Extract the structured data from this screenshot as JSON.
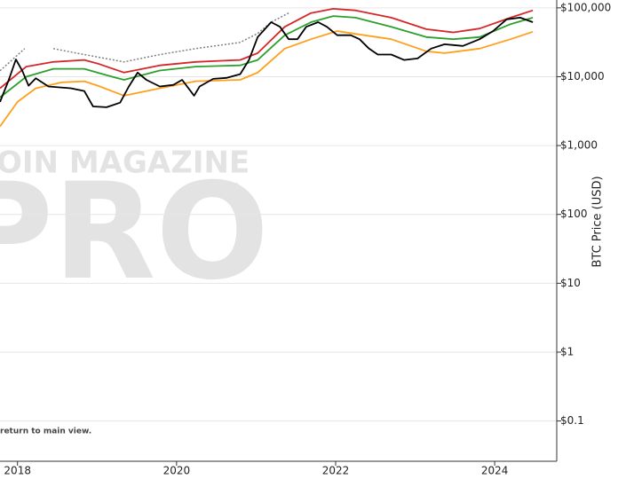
{
  "chart_data": {
    "type": "line",
    "y_axis_label": "BTC Price (USD)",
    "watermark": [
      "OIN MAGAZINE",
      "PRO",
      "®"
    ],
    "note": "return to main view.",
    "xlim": [
      2017.78,
      2024.78
    ],
    "xticks": [
      2018,
      2020,
      2022,
      2024
    ],
    "ylim": [
      0.026,
      130000
    ],
    "log_y": true,
    "grid": true,
    "yticks": [
      {
        "value": 0.1,
        "label": "$0.1"
      },
      {
        "value": 1,
        "label": "$1"
      },
      {
        "value": 10,
        "label": "$10"
      },
      {
        "value": 100,
        "label": "$100"
      },
      {
        "value": 1000,
        "label": "$1,000"
      },
      {
        "value": 10000,
        "label": "$10,000"
      },
      {
        "value": 100000,
        "label": "$100,000"
      }
    ],
    "series": [
      {
        "color": "#808080",
        "dash": true,
        "x": [
          2017.78,
          2018.09,
          2018.11,
          2018.45,
          2018.84,
          2019.34,
          2019.79,
          2020.24,
          2020.8,
          2021.02,
          2021.19,
          2021.41
        ],
        "values": [
          12200,
          25600,
          null,
          25600,
          21000,
          16400,
          21000,
          25600,
          31500,
          42500,
          62000,
          84000
        ]
      },
      {
        "color": "#d62728",
        "x": [
          2017.78,
          2018.11,
          2018.45,
          2018.84,
          2019.01,
          2019.34,
          2019.79,
          2020.24,
          2020.8,
          2021.02,
          2021.36,
          2021.69,
          2021.97,
          2022.25,
          2022.7,
          2023.14,
          2023.48,
          2023.81,
          2024.2,
          2024.48
        ],
        "values": [
          6800,
          14000,
          16400,
          17500,
          15500,
          11500,
          14600,
          16400,
          17500,
          22000,
          53000,
          84000,
          97000,
          92000,
          72000,
          49000,
          44000,
          50000,
          72000,
          92000
        ]
      },
      {
        "color": "#2ca02c",
        "x": [
          2017.78,
          2018.11,
          2018.45,
          2018.84,
          2019.12,
          2019.34,
          2019.79,
          2020.24,
          2020.8,
          2021.02,
          2021.36,
          2021.69,
          2021.97,
          2022.25,
          2022.7,
          2023.14,
          2023.48,
          2023.81,
          2024.2,
          2024.48
        ],
        "values": [
          5000,
          10000,
          13000,
          13000,
          10500,
          9000,
          12300,
          14000,
          14600,
          17500,
          40000,
          62000,
          76000,
          72000,
          53000,
          37600,
          35000,
          37600,
          58000,
          72000
        ]
      },
      {
        "color": "#ff9f1c",
        "x": [
          2017.78,
          2018.0,
          2018.23,
          2018.56,
          2018.84,
          2019.01,
          2019.34,
          2019.79,
          2020.24,
          2020.8,
          2021.02,
          2021.36,
          2021.69,
          2022.02,
          2022.36,
          2022.7,
          2023.14,
          2023.37,
          2023.81,
          2024.2,
          2024.48
        ],
        "values": [
          1900,
          4300,
          6800,
          8300,
          8600,
          7400,
          5300,
          6800,
          8600,
          9000,
          11500,
          25600,
          35000,
          46000,
          40000,
          35000,
          23400,
          22000,
          25600,
          35000,
          45000
        ]
      },
      {
        "color": "#000000",
        "x": [
          2017.78,
          2017.89,
          2017.98,
          2018.06,
          2018.14,
          2018.23,
          2018.39,
          2018.67,
          2018.84,
          2018.95,
          2019.12,
          2019.29,
          2019.4,
          2019.51,
          2019.62,
          2019.79,
          2019.96,
          2020.07,
          2020.22,
          2020.29,
          2020.46,
          2020.63,
          2020.8,
          2020.91,
          2021.02,
          2021.19,
          2021.3,
          2021.41,
          2021.52,
          2021.63,
          2021.78,
          2021.89,
          2022.02,
          2022.19,
          2022.3,
          2022.42,
          2022.53,
          2022.7,
          2022.86,
          2023.03,
          2023.2,
          2023.37,
          2023.6,
          2023.81,
          2023.98,
          2024.15,
          2024.32,
          2024.48
        ],
        "values": [
          4300,
          9000,
          17800,
          12200,
          7400,
          9500,
          7200,
          6800,
          6200,
          3700,
          3600,
          4200,
          7200,
          11500,
          9000,
          7200,
          7600,
          9000,
          5300,
          7200,
          9300,
          9600,
          10900,
          17500,
          37600,
          62000,
          53000,
          35000,
          35000,
          53000,
          62000,
          53000,
          40000,
          40000,
          35000,
          25600,
          21000,
          21000,
          17500,
          18400,
          25600,
          29600,
          28000,
          35000,
          46000,
          68000,
          72000,
          62000
        ]
      }
    ]
  }
}
